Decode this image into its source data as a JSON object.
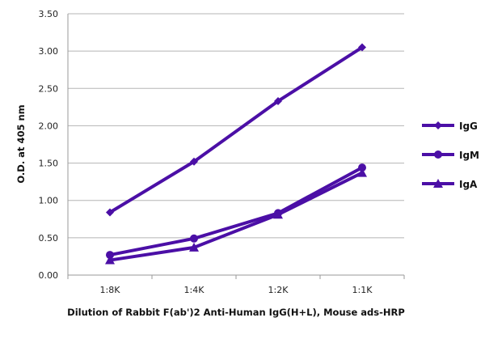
{
  "chart_data": {
    "type": "line",
    "title": "",
    "xlabel": "Dilution of Rabbit F(ab')2 Anti-Human IgG(H+L), Mouse ads-HRP",
    "ylabel": "O.D. at 405 nm",
    "categories": [
      "1:8K",
      "1:4K",
      "1:2K",
      "1:1K"
    ],
    "ylim": [
      0,
      3.5
    ],
    "yticks": [
      "0.00",
      "0.50",
      "1.00",
      "1.50",
      "2.00",
      "2.50",
      "3.00",
      "3.50"
    ],
    "grid": true,
    "legend_position": "right",
    "line_color": "#4b0fa6",
    "series": [
      {
        "name": "IgG",
        "marker": "diamond",
        "values": [
          0.84,
          1.52,
          2.33,
          3.05
        ]
      },
      {
        "name": "IgM",
        "marker": "circle",
        "values": [
          0.27,
          0.49,
          0.83,
          1.44
        ]
      },
      {
        "name": "IgA",
        "marker": "triangle",
        "values": [
          0.2,
          0.37,
          0.81,
          1.37
        ]
      }
    ]
  }
}
